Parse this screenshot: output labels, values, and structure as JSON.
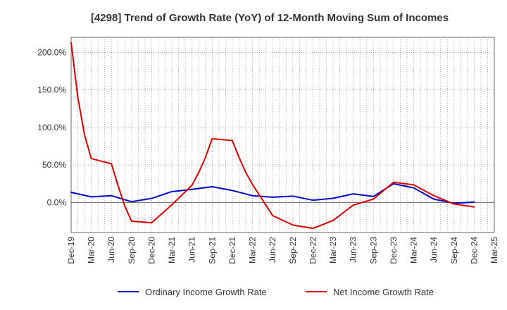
{
  "chart_data": {
    "type": "line",
    "title": "[4298]  Trend of Growth Rate (YoY) of 12-Month Moving Sum of Incomes",
    "xlabel": "",
    "ylabel": "",
    "ylim": [
      -40,
      220
    ],
    "y_ticks": [
      0,
      50,
      100,
      150,
      200
    ],
    "y_tick_labels": [
      "0.0%",
      "50.0%",
      "100.0%",
      "150.0%",
      "200.0%"
    ],
    "x_tick_labels": [
      "Dec-19",
      "Mar-20",
      "Jun-20",
      "Sep-20",
      "Dec-20",
      "Mar-21",
      "Jun-21",
      "Sep-21",
      "Dec-21",
      "Mar-22",
      "Jun-22",
      "Sep-22",
      "Dec-22",
      "Mar-23",
      "Jun-23",
      "Sep-23",
      "Dec-23",
      "Mar-24",
      "Jun-24",
      "Sep-24",
      "Dec-24",
      "Mar-25"
    ],
    "grid": true,
    "legend_position": "bottom",
    "series": [
      {
        "name": "Ordinary Income Growth Rate",
        "color": "#0000cc",
        "x": [
          0,
          3,
          6,
          9,
          12,
          15,
          18,
          21,
          24,
          27,
          30,
          33,
          36,
          39,
          42,
          45,
          48,
          51,
          54,
          57,
          60
        ],
        "values": [
          13.5,
          7.5,
          9.0,
          1.0,
          5.5,
          14.5,
          17.5,
          21.0,
          16.0,
          9.0,
          7.0,
          8.5,
          3.0,
          5.5,
          11.5,
          8.0,
          25.0,
          19.5,
          4.5,
          -1.0,
          0.5
        ]
      },
      {
        "name": "Net Income Growth Rate",
        "color": "#dd0000",
        "x": [
          0,
          1,
          2,
          3,
          6,
          7,
          8,
          9,
          12,
          15,
          18,
          19,
          20,
          21,
          24,
          25,
          26,
          27,
          30,
          33,
          36,
          39,
          42,
          45,
          48,
          51,
          54,
          57,
          60
        ],
        "values": [
          213,
          140,
          90,
          58.5,
          51.5,
          22,
          -5,
          -25,
          -27,
          -3,
          23,
          40,
          60,
          85,
          82.5,
          60,
          40,
          24,
          -17.5,
          -30,
          -34.5,
          -24,
          -3.5,
          4.5,
          27,
          23.5,
          9.0,
          -2.0,
          -6.0
        ]
      }
    ]
  }
}
